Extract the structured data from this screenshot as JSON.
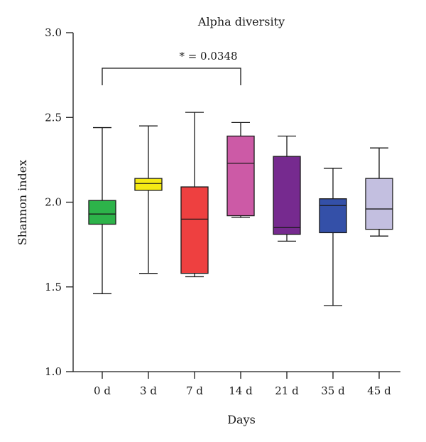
{
  "chart_data": {
    "type": "box",
    "title": "Alpha diversity",
    "xlabel": "Days",
    "ylabel": "Shannon index",
    "ylim": [
      1.0,
      3.0
    ],
    "yticks": [
      "1.0",
      "1.5",
      "2.0",
      "2.5",
      "3.0"
    ],
    "categories": [
      "0 d",
      "3 d",
      "7 d",
      "14 d",
      "21 d",
      "35 d",
      "45 d"
    ],
    "boxes": [
      {
        "category": "0 d",
        "min": 1.46,
        "q1": 1.87,
        "median": 1.93,
        "q3": 2.01,
        "max": 2.44,
        "color": "#2db34a"
      },
      {
        "category": "3 d",
        "min": 1.58,
        "q1": 2.07,
        "median": 2.11,
        "q3": 2.14,
        "max": 2.45,
        "color": "#f5ea14"
      },
      {
        "category": "7 d",
        "min": 1.56,
        "q1": 1.58,
        "median": 1.9,
        "q3": 2.09,
        "max": 2.53,
        "color": "#ee4040"
      },
      {
        "category": "14 d",
        "min": 1.91,
        "q1": 1.92,
        "median": 2.23,
        "q3": 2.39,
        "max": 2.47,
        "color": "#cc5aa6"
      },
      {
        "category": "21 d",
        "min": 1.77,
        "q1": 1.81,
        "median": 1.85,
        "q3": 2.27,
        "max": 2.39,
        "color": "#762a8f"
      },
      {
        "category": "35 d",
        "min": 1.39,
        "q1": 1.82,
        "median": 1.98,
        "q3": 2.02,
        "max": 2.2,
        "color": "#3450a8"
      },
      {
        "category": "45 d",
        "min": 1.8,
        "q1": 1.84,
        "median": 1.96,
        "q3": 2.14,
        "max": 2.32,
        "color": "#c3bfe0"
      }
    ],
    "annotation": {
      "text": "* = 0.0348",
      "from_category": "0 d",
      "to_category": "14 d"
    },
    "grid": false,
    "legend": "none"
  }
}
